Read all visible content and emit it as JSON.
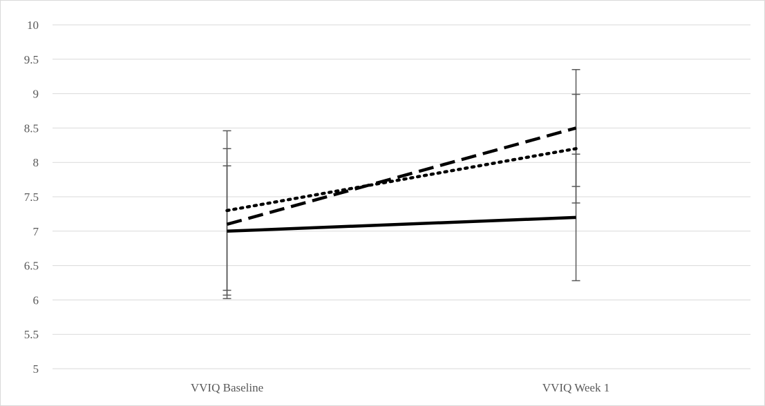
{
  "chart_data": {
    "type": "line",
    "title": "",
    "xlabel": "",
    "ylabel": "",
    "categories": [
      "VVIQ Baseline",
      "VVIQ Week 1"
    ],
    "ylim": [
      5,
      10
    ],
    "ytick_step": 0.5,
    "yticks": [
      "5",
      "5.5",
      "6",
      "6.5",
      "7",
      "7.5",
      "8",
      "8.5",
      "9",
      "9.5",
      "10"
    ],
    "grid": true,
    "legend": "none",
    "series": [
      {
        "style": "solid",
        "color": "#000000",
        "values": [
          7.0,
          7.2
        ],
        "error_low": [
          6.02,
          6.28
        ],
        "error_high": [
          7.95,
          8.99
        ]
      },
      {
        "style": "dashed",
        "color": "#000000",
        "values": [
          7.1,
          8.5
        ],
        "error_low": [
          6.07,
          7.65
        ],
        "error_high": [
          8.46,
          9.35
        ]
      },
      {
        "style": "dotted",
        "color": "#000000",
        "values": [
          7.3,
          8.2
        ],
        "error_low": [
          6.14,
          7.41
        ],
        "error_high": [
          8.2,
          8.12
        ]
      }
    ],
    "colors": {
      "grid": "#d9d9d9",
      "axis": "#d9d9d9",
      "error_bar": "#595959",
      "text": "#595959"
    }
  }
}
